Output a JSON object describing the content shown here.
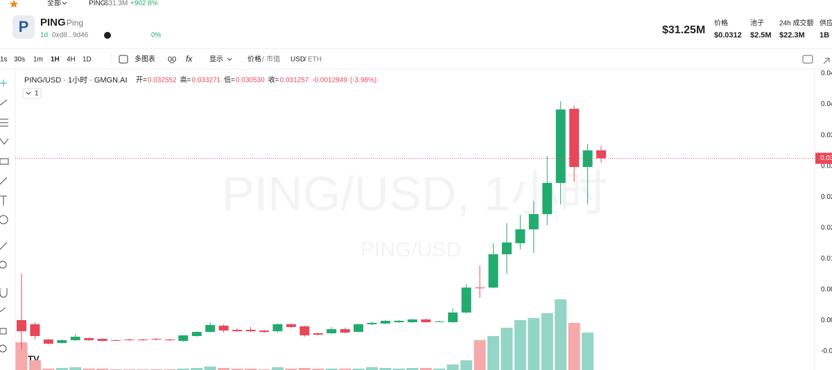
{
  "top_bar": {
    "all": "全部",
    "token": "PING",
    "market_cap": "$31.3M",
    "change": "+902.8%"
  },
  "token": {
    "symbol": "PING",
    "name": "Ping",
    "age": "1d",
    "address": "0xd8...9d46",
    "holders_pct": "0%"
  },
  "stats": {
    "market_cap": "$31.25M",
    "items": [
      {
        "label": "价格",
        "value": "$0.0312"
      },
      {
        "label": "池子",
        "value": "$2.5M"
      },
      {
        "label": "24h 成交额",
        "value": "$22.3M"
      },
      {
        "label": "供应",
        "value": "1B"
      }
    ]
  },
  "toolbar": {
    "intervals": [
      "1s",
      "30s",
      "1m",
      "1H",
      "4H",
      "1D"
    ],
    "multi_chart": "多图表",
    "display": "显示",
    "price": "价格",
    "mcap": "市值",
    "usd": "USD",
    "eth": "ETH"
  },
  "chart_data": {
    "type": "candlestick",
    "title": "PING/USD · 1小时 · GMGN.AI",
    "ohlc_labels": [
      {
        "key": "开=",
        "value": "0.032552"
      },
      {
        "key": "高=",
        "value": "0.033271"
      },
      {
        "key": "低=",
        "value": "0.030530"
      },
      {
        "key": "收=",
        "value": "0.031257"
      }
    ],
    "change": "-0.0012949",
    "change_pct": "(-3.98%)",
    "indicator_count": "1",
    "watermark": "PING/USD, 1小时",
    "watermark_small": "PING/USD",
    "open": [
      0.00505,
      0.00438,
      0.00191,
      0.00135,
      0.0018,
      0.00213,
      0.00202,
      0.0018,
      0.00191,
      0.00191,
      0.00202,
      0.00191,
      0.00168,
      0.00247,
      0.00314,
      0.00415,
      0.00348,
      0.00348,
      0.00337,
      0.00325,
      0.00438,
      0.00404,
      0.00292,
      0.00292,
      0.00359,
      0.00314,
      0.00438,
      0.00449,
      0.00471,
      0.00471,
      0.00516,
      0.00482,
      0.00471,
      0.00628,
      0.01032,
      0.01032,
      0.01571,
      0.01751,
      0.01975,
      0.02222,
      0.02727,
      0.03927,
      0.02985,
      0.032552
    ],
    "high": [
      0.01257,
      0.00471,
      0.00202,
      0.00191,
      0.00281,
      0.00224,
      0.00213,
      0.00191,
      0.00202,
      0.00202,
      0.00213,
      0.00202,
      0.00258,
      0.00325,
      0.00471,
      0.00438,
      0.00371,
      0.00393,
      0.00348,
      0.00449,
      0.00449,
      0.00415,
      0.00303,
      0.00393,
      0.00382,
      0.00449,
      0.00482,
      0.00505,
      0.00505,
      0.00528,
      0.00528,
      0.00494,
      0.00696,
      0.01088,
      0.01391,
      0.0175,
      0.02076,
      0.0221,
      0.02435,
      0.03164,
      0.0405,
      0.03983,
      0.03355,
      0.033271
    ],
    "low": [
      0.0003,
      0.00191,
      0.00112,
      0.00123,
      0.00168,
      0.00168,
      0.00157,
      0.00168,
      0.00168,
      0.00168,
      0.0018,
      0.00168,
      0.00157,
      0.00236,
      0.00303,
      0.00303,
      0.00314,
      0.00314,
      0.00292,
      0.00303,
      0.00371,
      0.00236,
      0.00258,
      0.00281,
      0.00292,
      0.00303,
      0.00426,
      0.00438,
      0.0046,
      0.0046,
      0.0046,
      0.00471,
      0.0046,
      0.00617,
      0.00864,
      0.01021,
      0.01257,
      0.0165,
      0.01593,
      0.02042,
      0.02379,
      0.02749,
      0.02379,
      0.03053
    ],
    "close": [
      0.00325,
      0.00247,
      0.00123,
      0.0018,
      0.00236,
      0.0018,
      0.00168,
      0.00178,
      0.0018,
      0.0018,
      0.00191,
      0.0018,
      0.00258,
      0.00314,
      0.00426,
      0.00337,
      0.00325,
      0.00325,
      0.00314,
      0.00438,
      0.00393,
      0.00258,
      0.00269,
      0.00359,
      0.00303,
      0.00438,
      0.0046,
      0.00494,
      0.00494,
      0.00516,
      0.00471,
      0.00485,
      0.00628,
      0.01032,
      0.01021,
      0.01571,
      0.01762,
      0.01975,
      0.02222,
      0.02727,
      0.03916,
      0.02985,
      0.03254,
      0.031257
    ],
    "volume": [
      40,
      14,
      2,
      3,
      4,
      2,
      2,
      1,
      1,
      1,
      1,
      1,
      2,
      3,
      5,
      3,
      2,
      2,
      1,
      4,
      2,
      3,
      2,
      2,
      2,
      2,
      4,
      3,
      2,
      3,
      3,
      2,
      8,
      14,
      43,
      49,
      61,
      72,
      75,
      82,
      102,
      68,
      54,
      0
    ],
    "ylim": [
      0,
      0.045
    ],
    "volume_lim": [
      0,
      120
    ],
    "y_axis_labels": [
      "0.04",
      "0.04",
      "0.03",
      "0.03",
      "0.02",
      "0.02",
      "0.01",
      "0.00",
      "0.00",
      "-0.0"
    ],
    "last_price_label": "0.03",
    "up_color": "#22ab6e",
    "down_color": "#e8475a",
    "up_volume_color": "#93d5c6",
    "down_volume_color": "#f5a9aa"
  }
}
